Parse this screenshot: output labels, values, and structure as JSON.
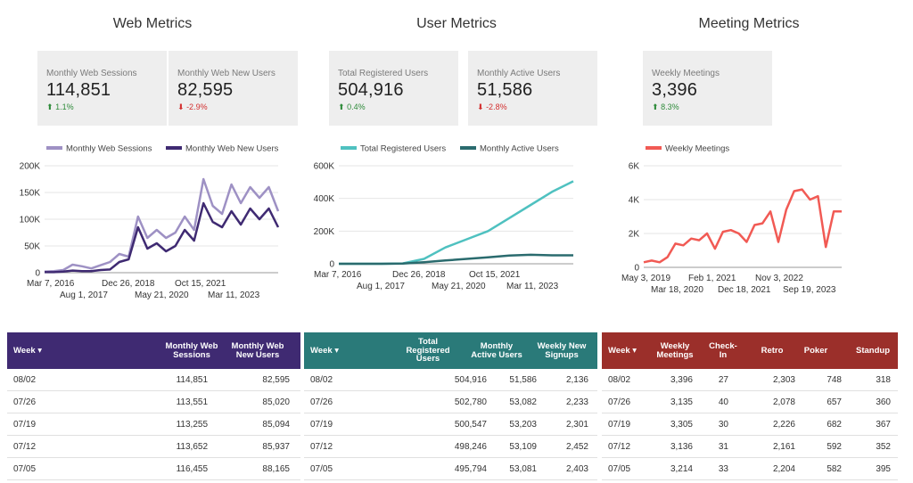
{
  "sections": {
    "web": {
      "title": "Web Metrics"
    },
    "user": {
      "title": "User Metrics"
    },
    "meeting": {
      "title": "Meeting Metrics"
    }
  },
  "kpis": {
    "web_sessions": {
      "label": "Monthly Web Sessions",
      "value": "114,851",
      "delta": "1.1%",
      "direction": "up"
    },
    "web_new_users": {
      "label": "Monthly Web New Users",
      "value": "82,595",
      "delta": "-2.9%",
      "direction": "down"
    },
    "registered_users": {
      "label": "Total Registered Users",
      "value": "504,916",
      "delta": "0.4%",
      "direction": "up"
    },
    "active_users": {
      "label": "Monthly Active Users",
      "value": "51,586",
      "delta": "-2.8%",
      "direction": "down"
    },
    "weekly_meetings": {
      "label": "Weekly Meetings",
      "value": "3,396",
      "delta": "8.3%",
      "direction": "up"
    }
  },
  "chart_data": [
    {
      "type": "line",
      "yticks": [
        "0",
        "50K",
        "100K",
        "150K",
        "200K"
      ],
      "ylim": [
        0,
        200000
      ],
      "xticks_row1": [
        "Mar 7, 2016",
        "Dec 26, 2018",
        "Oct 15, 2021"
      ],
      "xticks_row2": [
        "Aug 1, 2017",
        "May 21, 2020",
        "Mar 11, 2023"
      ],
      "x": [
        "2016-03",
        "2016-10",
        "2017-04",
        "2017-09",
        "2018-01",
        "2018-06",
        "2018-10",
        "2019-03",
        "2019-07",
        "2019-11",
        "2020-03",
        "2020-06",
        "2020-08",
        "2020-11",
        "2021-02",
        "2021-05",
        "2021-08",
        "2021-11",
        "2022-02",
        "2022-04",
        "2022-07",
        "2022-10",
        "2023-01",
        "2023-03",
        "2023-06",
        "2023-08"
      ],
      "series": [
        {
          "name": "Monthly Web Sessions",
          "color": "#9e91c4",
          "values": [
            2000,
            3000,
            5000,
            15000,
            12000,
            8000,
            14000,
            20000,
            35000,
            30000,
            105000,
            65000,
            80000,
            65000,
            75000,
            105000,
            80000,
            175000,
            125000,
            110000,
            165000,
            130000,
            160000,
            140000,
            160000,
            115000
          ]
        },
        {
          "name": "Monthly Web New Users",
          "color": "#3f2a72",
          "values": [
            1000,
            1000,
            2000,
            4000,
            3000,
            3000,
            5000,
            6000,
            20000,
            25000,
            85000,
            45000,
            55000,
            40000,
            50000,
            80000,
            60000,
            130000,
            95000,
            85000,
            115000,
            90000,
            120000,
            100000,
            120000,
            85000
          ]
        }
      ]
    },
    {
      "type": "line",
      "yticks": [
        "0",
        "200K",
        "400K",
        "600K"
      ],
      "ylim": [
        0,
        600000
      ],
      "xticks_row1": [
        "Mar 7, 2016",
        "Dec 26, 2018",
        "Oct 15, 2021"
      ],
      "xticks_row2": [
        "Aug 1, 2017",
        "May 21, 2020",
        "Mar 11, 2023"
      ],
      "x": [
        "2016-03",
        "2017-03",
        "2018-03",
        "2019-03",
        "2020-03",
        "2020-09",
        "2021-03",
        "2021-09",
        "2022-03",
        "2022-09",
        "2023-03",
        "2023-08"
      ],
      "series": [
        {
          "name": "Total Registered Users",
          "color": "#4fc1c0",
          "values": [
            0,
            0,
            0,
            2000,
            30000,
            100000,
            150000,
            200000,
            280000,
            360000,
            440000,
            505000
          ]
        },
        {
          "name": "Monthly Active Users",
          "color": "#2a6b6e",
          "values": [
            0,
            0,
            0,
            1000,
            10000,
            20000,
            30000,
            40000,
            50000,
            55000,
            52000,
            52000
          ]
        }
      ]
    },
    {
      "type": "line",
      "yticks": [
        "0",
        "2K",
        "4K",
        "6K"
      ],
      "ylim": [
        0,
        6000
      ],
      "xticks_row1": [
        "May 3, 2019",
        "Feb 1, 2021",
        "Nov 3, 2022"
      ],
      "xticks_row2": [
        "Mar 18, 2020",
        "Dec 18, 2021",
        "Sep 19, 2023"
      ],
      "x": [
        "2019-05",
        "2019-08",
        "2019-11",
        "2020-02",
        "2020-04",
        "2020-06",
        "2020-08",
        "2020-10",
        "2020-12",
        "2021-02",
        "2021-04",
        "2021-06",
        "2021-08",
        "2021-10",
        "2021-12",
        "2022-02",
        "2022-04",
        "2022-06",
        "2022-08",
        "2022-10",
        "2022-12",
        "2023-01",
        "2023-03",
        "2023-05",
        "2023-07",
        "2023-09"
      ],
      "series": [
        {
          "name": "Weekly Meetings",
          "color": "#f15a54",
          "values": [
            300,
            400,
            300,
            600,
            1400,
            1300,
            1700,
            1600,
            2000,
            1100,
            2100,
            2200,
            2000,
            1500,
            2500,
            2600,
            3300,
            1500,
            3400,
            4500,
            4600,
            4000,
            4200,
            1200,
            3300,
            3300
          ]
        }
      ]
    }
  ],
  "tables": {
    "web": {
      "header_color": "#3f2a72",
      "week_header": "Week ▾",
      "columns": [
        "Monthly Web Sessions",
        "Monthly Web New Users"
      ],
      "rows": [
        [
          "08/02",
          "114,851",
          "82,595"
        ],
        [
          "07/26",
          "113,551",
          "85,020"
        ],
        [
          "07/19",
          "113,255",
          "85,094"
        ],
        [
          "07/12",
          "113,652",
          "85,937"
        ],
        [
          "07/05",
          "116,455",
          "88,165"
        ]
      ]
    },
    "user": {
      "header_color": "#2a7a79",
      "week_header": "Week ▾",
      "columns": [
        "Total Registered Users",
        "Monthly Active Users",
        "Weekly New Signups"
      ],
      "rows": [
        [
          "08/02",
          "504,916",
          "51,586",
          "2,136"
        ],
        [
          "07/26",
          "502,780",
          "53,082",
          "2,233"
        ],
        [
          "07/19",
          "500,547",
          "53,203",
          "2,301"
        ],
        [
          "07/12",
          "498,246",
          "53,109",
          "2,452"
        ],
        [
          "07/05",
          "495,794",
          "53,081",
          "2,403"
        ]
      ]
    },
    "meeting": {
      "header_color": "#9b2f2a",
      "week_header": "Week ▾",
      "columns": [
        "Weekly Meetings",
        "Check-In",
        "Retro",
        "Poker",
        "Standup"
      ],
      "rows": [
        [
          "08/02",
          "3,396",
          "27",
          "2,303",
          "748",
          "318"
        ],
        [
          "07/26",
          "3,135",
          "40",
          "2,078",
          "657",
          "360"
        ],
        [
          "07/19",
          "3,305",
          "30",
          "2,226",
          "682",
          "367"
        ],
        [
          "07/12",
          "3,136",
          "31",
          "2,161",
          "592",
          "352"
        ],
        [
          "07/05",
          "3,214",
          "33",
          "2,204",
          "582",
          "395"
        ]
      ]
    }
  }
}
